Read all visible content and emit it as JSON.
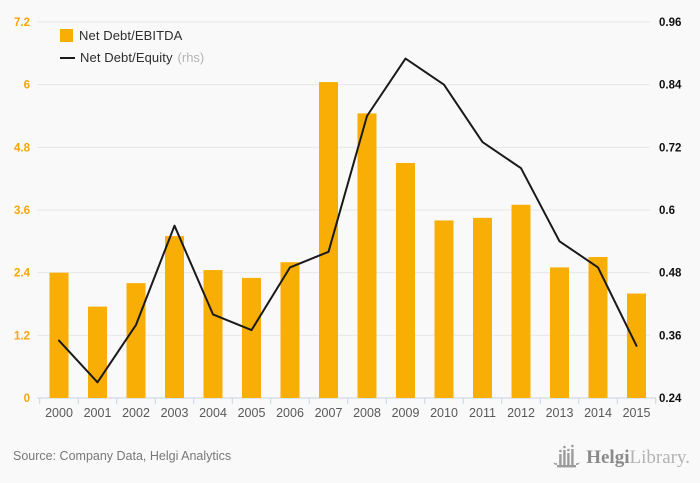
{
  "chart_data": {
    "type": "bar+line",
    "categories": [
      "2000",
      "2001",
      "2002",
      "2003",
      "2004",
      "2005",
      "2006",
      "2007",
      "2008",
      "2009",
      "2010",
      "2011",
      "2012",
      "2013",
      "2014",
      "2015"
    ],
    "series": [
      {
        "name": "Net Debt/EBITDA",
        "type": "bar",
        "axis": "left",
        "color": "#F9AE06",
        "values": [
          2.4,
          1.75,
          2.2,
          3.1,
          2.45,
          2.3,
          2.6,
          6.05,
          5.45,
          4.5,
          3.4,
          3.45,
          3.7,
          2.5,
          2.7,
          2.0
        ]
      },
      {
        "name": "Net Debt/Equity",
        "note": "(rhs)",
        "type": "line",
        "axis": "right",
        "color": "#1a1a1a",
        "values": [
          0.35,
          0.27,
          0.38,
          0.57,
          0.4,
          0.37,
          0.49,
          0.52,
          0.78,
          0.89,
          0.84,
          0.73,
          0.68,
          0.54,
          0.49,
          0.34
        ]
      }
    ],
    "left_axis": {
      "min": 0,
      "max": 7.2,
      "ticks_top_down": [
        "7.2",
        "6",
        "4.8",
        "3.6",
        "2.4",
        "1.2",
        "0"
      ],
      "label_color": "#F5A50A"
    },
    "right_axis": {
      "min": 0.24,
      "max": 0.96,
      "ticks_top_down": [
        "0.96",
        "0.84",
        "0.72",
        "0.6",
        "0.48",
        "0.36",
        "0.24"
      ],
      "label_color": "#101010"
    },
    "grid": true,
    "grid_color": "#e7e7e7",
    "axis_line_color": "#c8d2e2",
    "category_label_color": "#595959",
    "legend_position": "top-left",
    "background": "#f9f9f9"
  },
  "legend": {
    "items": [
      {
        "label": "Net Debt/EBITDA"
      },
      {
        "label": "Net Debt/Equity",
        "note": "(rhs)"
      }
    ]
  },
  "footer": {
    "source": "Source: Company Data, Helgi Analytics",
    "logo": {
      "name": "Helgi",
      "name2": "Library."
    }
  }
}
